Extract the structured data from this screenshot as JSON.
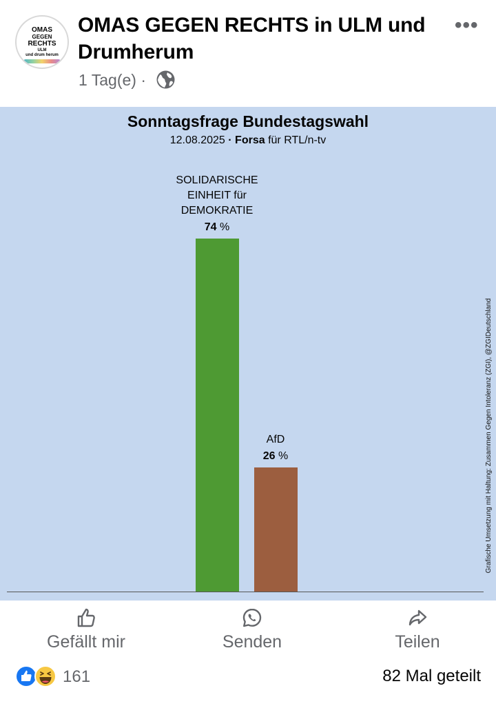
{
  "post": {
    "page_name": "OMAS GEGEN RECHTS in ULM und Drumherum",
    "time": "1 Tag(e)",
    "separator": "·",
    "more_label": "•••",
    "avatar": {
      "line1": "OMAS",
      "line2": "GEGEN",
      "line3": "RECHTS",
      "line4": "ULM",
      "line5": "und drum herum"
    }
  },
  "chart_data": {
    "type": "bar",
    "title": "Sonntagsfrage Bundestagswahl",
    "subtitle_date": "12.08.2025",
    "subtitle_dot": "·",
    "subtitle_pollster": "Forsa",
    "subtitle_client": "für RTL/n-tv",
    "categories": [
      "SOLIDARISCHE EINHEIT für DEMOKRATIE",
      "AfD"
    ],
    "category_lines": [
      [
        "SOLIDARISCHE",
        "EINHEIT für",
        "DEMOKRATIE"
      ],
      [
        "AfD"
      ]
    ],
    "values": [
      74,
      26
    ],
    "value_labels": [
      "74",
      "26"
    ],
    "unit": "%",
    "colors": [
      "#4e9a33",
      "#9c5e3f"
    ],
    "ylim": [
      0,
      80
    ],
    "credit": "Grafische Umsetzung mit Haltung: Zusammen Gegen Intoleranz (ZGI), @ZGIDeutschland"
  },
  "actions": {
    "like": "Gefällt mir",
    "send": "Senden",
    "share": "Teilen"
  },
  "footer": {
    "reaction_count": "161",
    "shares": "82 Mal geteilt"
  },
  "colors": {
    "chart_bg": "#c5d7ef",
    "secondary_text": "#65676b",
    "like_blue": "#1877f2"
  }
}
